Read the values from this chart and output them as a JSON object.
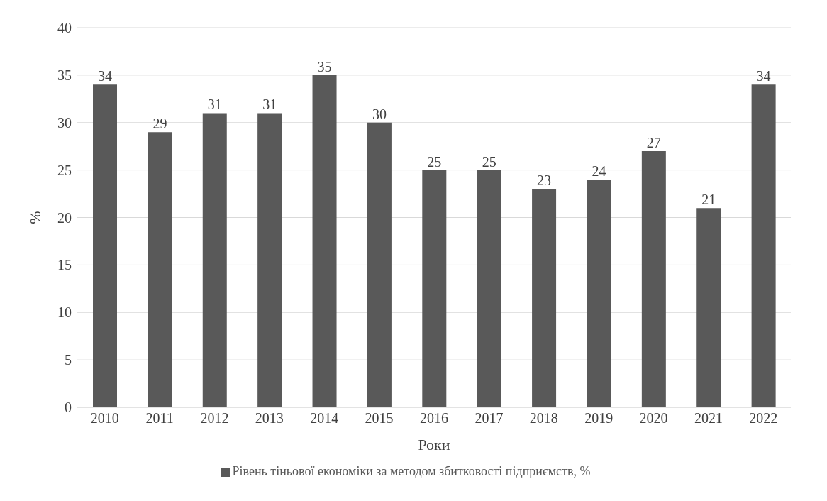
{
  "chart_data": {
    "type": "bar",
    "xlabel": "Роки",
    "ylabel": "%",
    "categories": [
      "2010",
      "2011",
      "2012",
      "2013",
      "2014",
      "2015",
      "2016",
      "2017",
      "2018",
      "2019",
      "2020",
      "2021",
      "2022"
    ],
    "series": [
      {
        "name": "Рівень тіньової економіки за методом збитковості підприємств, %",
        "color": "#595959",
        "values": [
          34,
          29,
          31,
          31,
          35,
          30,
          25,
          25,
          23,
          24,
          27,
          21,
          34
        ]
      }
    ],
    "ylim": [
      0,
      40
    ],
    "yticks": [
      0,
      5,
      10,
      15,
      20,
      25,
      30,
      35,
      40
    ],
    "grid": "y",
    "legend": "bottom",
    "data_labels": true
  }
}
